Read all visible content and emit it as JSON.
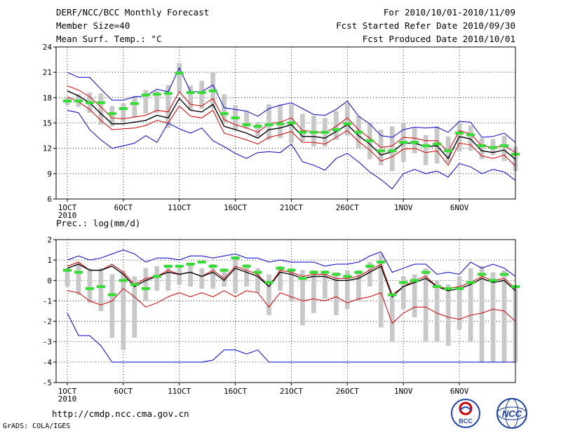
{
  "header": {
    "title": "DERF/NCC/BCC Monthly Forecast",
    "member_size": "Member Size=40",
    "variable": "Mean Surf. Temp.: °C",
    "for_range": "For 2010/10/01-2010/11/09",
    "started_refer": "Fcst Started Refer Date 2010/09/30",
    "produced": "Fcst Produced Date 2010/10/01"
  },
  "footer": {
    "url": "http://cmdp.ncc.cma.gov.cn",
    "grads": "GrADS: COLA/IGES",
    "logo_bcc": "BCC",
    "logo_ncc": "NCC"
  },
  "colors": {
    "grid": "#000000",
    "box": "#c8c8c8",
    "mean": "#000000",
    "std": "#d00000",
    "range": "#0000cc",
    "obs": "#33dd33"
  },
  "chart_data": [
    {
      "type": "line",
      "title": "Mean Surf. Temp.: °C",
      "xlabel": "",
      "ylabel": "°C",
      "days": 40,
      "xlim": [
        0,
        41
      ],
      "ylim": [
        6,
        24
      ],
      "yticks": [
        6,
        9,
        12,
        15,
        18,
        21,
        24
      ],
      "xticks": [
        {
          "day": 1,
          "label": "1OCT",
          "sub": "2010"
        },
        {
          "day": 6,
          "label": "6OCT"
        },
        {
          "day": 11,
          "label": "11OCT"
        },
        {
          "day": 16,
          "label": "16OCT"
        },
        {
          "day": 21,
          "label": "21OCT"
        },
        {
          "day": 26,
          "label": "26OCT"
        },
        {
          "day": 31,
          "label": "1NOV"
        },
        {
          "day": 36,
          "label": "6NOV"
        }
      ],
      "series": [
        {
          "name": "ensemble max",
          "style": "range",
          "values": [
            21.0,
            20.4,
            20.4,
            19.0,
            17.7,
            17.7,
            18.1,
            18.2,
            19.0,
            18.7,
            21.5,
            18.7,
            18.7,
            19.5,
            16.8,
            16.6,
            16.4,
            15.8,
            16.7,
            17.1,
            17.4,
            16.7,
            16.0,
            15.9,
            16.6,
            17.6,
            15.8,
            14.9,
            13.5,
            13.3,
            14.2,
            14.5,
            14.4,
            14.5,
            13.9,
            15.2,
            15.1,
            13.3,
            13.4,
            13.8,
            12.7
          ]
        },
        {
          "name": "mean + 1 std",
          "style": "std",
          "values": [
            19.4,
            18.9,
            18.1,
            16.9,
            15.6,
            15.5,
            15.7,
            15.9,
            16.5,
            16.3,
            18.7,
            17.2,
            17.0,
            17.9,
            15.4,
            14.8,
            14.4,
            13.9,
            14.9,
            15.1,
            15.6,
            14.1,
            14.0,
            13.8,
            14.6,
            15.6,
            14.2,
            13.2,
            12.1,
            12.3,
            13.3,
            13.2,
            12.9,
            12.9,
            11.6,
            14.1,
            13.7,
            12.3,
            12.1,
            12.3,
            11.5
          ]
        },
        {
          "name": "ensemble mean",
          "style": "mean",
          "values": [
            18.8,
            18.2,
            17.4,
            16.1,
            14.9,
            14.9,
            15.1,
            15.3,
            15.9,
            15.6,
            17.9,
            16.5,
            16.3,
            17.2,
            14.6,
            14.2,
            13.8,
            13.2,
            14.2,
            14.4,
            14.8,
            13.4,
            13.4,
            13.2,
            14.0,
            14.8,
            13.5,
            12.5,
            11.2,
            11.6,
            12.6,
            12.6,
            12.2,
            12.3,
            10.8,
            13.4,
            13.1,
            11.7,
            11.5,
            11.8,
            10.7
          ]
        },
        {
          "name": "mean - 1 std",
          "style": "std",
          "values": [
            18.1,
            17.5,
            16.6,
            15.3,
            14.2,
            14.3,
            14.4,
            14.7,
            15.3,
            15.0,
            17.0,
            15.8,
            15.6,
            16.5,
            13.8,
            13.4,
            13.0,
            12.5,
            13.3,
            13.6,
            14.0,
            12.7,
            12.7,
            12.5,
            13.3,
            14.1,
            12.8,
            11.8,
            10.5,
            11.0,
            11.9,
            12.0,
            11.5,
            11.7,
            10.0,
            12.6,
            12.4,
            11.1,
            10.8,
            11.2,
            9.9
          ]
        },
        {
          "name": "ensemble min",
          "style": "range",
          "values": [
            16.5,
            16.2,
            14.2,
            13.0,
            12.0,
            12.3,
            12.6,
            13.5,
            12.7,
            15.0,
            14.3,
            13.8,
            14.4,
            12.9,
            12.2,
            11.4,
            10.8,
            11.5,
            11.6,
            11.5,
            12.5,
            10.4,
            10.0,
            9.4,
            10.8,
            11.4,
            10.4,
            9.2,
            8.3,
            7.2,
            9.0,
            9.5,
            9.0,
            9.3,
            8.6,
            10.2,
            9.8,
            9.0,
            9.5,
            9.2,
            8.2
          ]
        }
      ],
      "box_low": [
        17.1,
        16.9,
        16.2,
        14.8,
        14.6,
        15.1,
        15.7,
        16.1,
        16.2,
        14.4,
        18.6,
        16.5,
        16.7,
        16.7,
        15.0,
        14.2,
        14.3,
        13.4,
        13.0,
        13.2,
        12.6,
        12.8,
        12.2,
        12.2,
        13.0,
        13.5,
        12.0,
        10.7,
        10.0,
        9.3,
        10.4,
        11.4,
        10.0,
        10.2,
        10.3,
        11.6,
        11.7,
        10.7,
        11.2,
        10.5,
        9.3
      ],
      "box_high": [
        18.0,
        18.4,
        18.6,
        18.5,
        17.0,
        17.3,
        18.2,
        18.9,
        18.8,
        19.5,
        22.1,
        19.4,
        20.0,
        21.0,
        18.4,
        17.1,
        16.4,
        15.1,
        17.2,
        17.2,
        17.2,
        16.1,
        15.9,
        15.6,
        16.4,
        17.3,
        15.8,
        15.0,
        14.2,
        14.6,
        15.0,
        14.4,
        13.6,
        14.6,
        13.4,
        15.1,
        14.7,
        13.2,
        13.1,
        13.5,
        12.2
      ],
      "obs": [
        17.6,
        17.6,
        17.4,
        17.4,
        16.1,
        16.7,
        17.3,
        18.3,
        18.4,
        18.5,
        20.9,
        18.6,
        18.6,
        18.8,
        16.1,
        15.6,
        14.8,
        14.6,
        14.8,
        14.9,
        15.0,
        13.9,
        13.9,
        13.9,
        14.2,
        14.9,
        13.9,
        12.9,
        11.7,
        11.7,
        12.7,
        12.7,
        12.3,
        12.5,
        11.7,
        13.8,
        13.6,
        12.3,
        12.1,
        12.3,
        11.3
      ]
    },
    {
      "type": "line",
      "title": "Prec.: log(mm/d)",
      "xlabel": "",
      "ylabel": "log(mm/d)",
      "days": 40,
      "xlim": [
        0,
        41
      ],
      "ylim": [
        -5,
        2
      ],
      "yticks": [
        -5,
        -4,
        -3,
        -2,
        -1,
        0,
        1,
        2
      ],
      "xticks": [
        {
          "day": 1,
          "label": "1OCT",
          "sub": "2010"
        },
        {
          "day": 6,
          "label": "6OCT"
        },
        {
          "day": 11,
          "label": "11OCT"
        },
        {
          "day": 16,
          "label": "16OCT"
        },
        {
          "day": 21,
          "label": "21OCT"
        },
        {
          "day": 26,
          "label": "26OCT"
        },
        {
          "day": 31,
          "label": "1NOV"
        },
        {
          "day": 36,
          "label": "6NOV"
        }
      ],
      "series": [
        {
          "name": "ensemble max",
          "style": "range",
          "values": [
            1.0,
            1.2,
            1.0,
            1.1,
            1.3,
            1.5,
            1.3,
            0.9,
            1.1,
            1.1,
            1.0,
            1.2,
            1.2,
            1.1,
            1.2,
            1.3,
            1.1,
            1.1,
            0.9,
            1.0,
            0.9,
            0.9,
            0.9,
            0.7,
            0.8,
            0.8,
            0.9,
            1.2,
            1.4,
            0.4,
            0.6,
            0.8,
            0.8,
            0.3,
            0.4,
            0.3,
            0.9,
            0.6,
            0.8,
            0.6,
            0.2
          ]
        },
        {
          "name": "mean + 1 std",
          "style": "std",
          "values": [
            0.7,
            0.9,
            0.5,
            0.5,
            0.8,
            0.4,
            -0.2,
            0.1,
            0.2,
            0.5,
            0.3,
            0.4,
            0.2,
            0.5,
            0.1,
            0.7,
            0.5,
            0.3,
            -0.3,
            0.5,
            0.4,
            0.2,
            0.3,
            0.3,
            0.1,
            0.1,
            0.2,
            0.5,
            0.8,
            -0.7,
            -0.3,
            0.0,
            0.2,
            -0.3,
            -0.4,
            -0.3,
            -0.1,
            0.2,
            0.0,
            0.1,
            -0.4
          ]
        },
        {
          "name": "ensemble mean",
          "style": "mean",
          "values": [
            0.6,
            0.8,
            0.5,
            0.5,
            0.7,
            0.3,
            -0.3,
            0.0,
            0.2,
            0.4,
            0.3,
            0.4,
            0.2,
            0.4,
            0.0,
            0.6,
            0.4,
            0.2,
            -0.3,
            0.4,
            0.3,
            0.1,
            0.2,
            0.2,
            0.0,
            0.0,
            0.1,
            0.4,
            0.7,
            -0.8,
            -0.3,
            -0.1,
            0.1,
            -0.3,
            -0.5,
            -0.4,
            -0.2,
            0.1,
            -0.1,
            0.0,
            -0.5
          ]
        },
        {
          "name": "mean - 1 std",
          "style": "std",
          "values": [
            -0.5,
            -0.6,
            -1.0,
            -1.2,
            -1.0,
            -0.4,
            -0.8,
            -1.3,
            -1.1,
            -0.8,
            -0.6,
            -0.8,
            -0.6,
            -0.8,
            -0.5,
            -0.8,
            -0.5,
            -0.6,
            -1.3,
            -0.6,
            -0.8,
            -1.0,
            -0.9,
            -1.0,
            -0.8,
            -1.1,
            -0.9,
            -0.8,
            -0.6,
            -2.1,
            -1.6,
            -1.3,
            -1.3,
            -1.6,
            -1.8,
            -1.9,
            -1.7,
            -1.6,
            -1.4,
            -1.5,
            -2.0
          ]
        },
        {
          "name": "ensemble min",
          "style": "range",
          "values": [
            -1.6,
            -2.7,
            -2.7,
            -3.2,
            -4.0,
            -4.0,
            -4.0,
            -4.0,
            -4.0,
            -4.0,
            -4.0,
            -4.0,
            -4.0,
            -3.9,
            -3.4,
            -3.4,
            -3.6,
            -3.4,
            -4.0,
            -4.0,
            -4.0,
            -4.0,
            -4.0,
            -4.0,
            -4.0,
            -4.0,
            -4.0,
            -4.0,
            -4.0,
            -4.0,
            -4.0,
            -4.0,
            -4.0,
            -4.0,
            -4.0,
            -4.0,
            -4.0,
            -4.0,
            -4.0,
            -4.0,
            -4.0
          ]
        }
      ],
      "box_low": [
        -0.3,
        -0.7,
        -1.1,
        -1.5,
        -2.8,
        -3.4,
        -2.8,
        -1.0,
        -0.5,
        -0.5,
        -0.2,
        -0.3,
        -0.4,
        -0.4,
        -0.3,
        -0.6,
        -0.3,
        -0.6,
        -1.7,
        -0.5,
        -1.0,
        -2.2,
        -1.6,
        -0.9,
        -1.7,
        -1.4,
        -1.0,
        -0.3,
        -2.3,
        -3.0,
        -1.4,
        -1.8,
        -3.0,
        -3.0,
        -3.2,
        -2.4,
        -3.0,
        -4.0,
        -4.0,
        -4.0,
        -4.0
      ],
      "box_high": [
        0.6,
        0.9,
        0.6,
        0.6,
        0.3,
        0.5,
        0.2,
        0.6,
        0.7,
        0.7,
        0.6,
        0.8,
        0.6,
        0.8,
        0.6,
        1.2,
        0.8,
        0.6,
        0.3,
        0.7,
        0.6,
        0.5,
        0.5,
        0.5,
        0.4,
        0.5,
        0.5,
        0.9,
        1.3,
        -0.7,
        0.2,
        0.3,
        0.6,
        0.0,
        -0.2,
        0.2,
        0.6,
        0.7,
        0.4,
        0.5,
        -0.3
      ],
      "obs": [
        0.5,
        0.4,
        -0.4,
        -0.3,
        -0.7,
        0.0,
        -0.2,
        -0.4,
        0.2,
        0.7,
        0.7,
        0.8,
        0.9,
        0.7,
        0.5,
        1.1,
        0.7,
        0.4,
        -0.1,
        0.6,
        0.5,
        0.1,
        0.4,
        0.4,
        0.3,
        0.2,
        0.4,
        0.7,
        0.9,
        -0.7,
        -0.1,
        0.0,
        0.4,
        -0.3,
        -0.4,
        -0.4,
        -0.1,
        0.3,
        0.0,
        0.3,
        -0.3
      ]
    }
  ],
  "subplot_titles": [
    "",
    "Prec.: log(mm/d)"
  ]
}
